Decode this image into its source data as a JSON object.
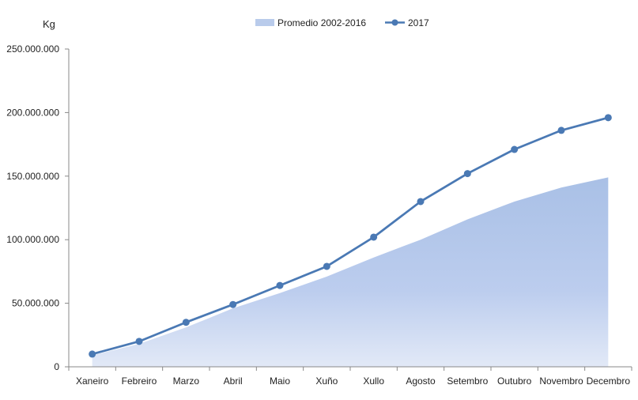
{
  "chart_data": {
    "type": "area",
    "unit_label": "Kg",
    "categories": [
      "Xaneiro",
      "Febreiro",
      "Marzo",
      "Abril",
      "Maio",
      "Xuño",
      "Xullo",
      "Agosto",
      "Setembro",
      "Outubro",
      "Novembro",
      "Decembro"
    ],
    "ylim": [
      0,
      250000000
    ],
    "yticks": [
      0,
      50000000,
      100000000,
      150000000,
      200000000,
      250000000
    ],
    "ytick_labels": [
      "0",
      "50.000.000",
      "100.000.000",
      "150.000.000",
      "200.000.000",
      "250.000.000"
    ],
    "legend_position": "top-center",
    "grid": false,
    "series": [
      {
        "name": "Promedio 2002-2016",
        "kind": "area",
        "color": "#b4c7e7",
        "values": [
          9000000,
          18000000,
          31000000,
          46000000,
          58000000,
          71000000,
          86000000,
          100000000,
          116000000,
          130000000,
          141000000,
          149000000
        ]
      },
      {
        "name": "2017",
        "kind": "line",
        "color": "#4a79b4",
        "values": [
          10000000,
          20000000,
          35000000,
          49000000,
          64000000,
          79000000,
          102000000,
          130000000,
          152000000,
          171000000,
          186000000,
          196000000
        ]
      }
    ]
  }
}
